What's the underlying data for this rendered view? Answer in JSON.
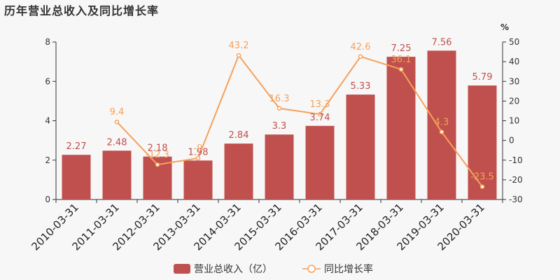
{
  "title": "历年营业总收入及同比增长率",
  "colors": {
    "bar": "#c0504d",
    "line": "#f5a15b",
    "axis": "#333333"
  },
  "chart_data": {
    "type": "bar",
    "categories": [
      "2010-03-31",
      "2011-03-31",
      "2012-03-31",
      "2013-03-31",
      "2014-03-31",
      "2015-03-31",
      "2016-03-31",
      "2017-03-31",
      "2018-03-31",
      "2019-03-31",
      "2020-03-31"
    ],
    "series": [
      {
        "name": "营业总收入（亿）",
        "type": "bar",
        "axis": "left",
        "values": [
          2.27,
          2.48,
          2.18,
          1.98,
          2.84,
          3.3,
          3.74,
          5.33,
          7.25,
          7.56,
          5.79
        ],
        "labels": [
          "2.27",
          "2.48",
          "2.18",
          "1.98",
          "2.84",
          "3.3",
          "3.74",
          "5.33",
          "7.25",
          "7.56",
          "5.79"
        ]
      },
      {
        "name": "同比增长率",
        "type": "line",
        "axis": "right",
        "values": [
          null,
          9.4,
          -12.3,
          -9,
          43.2,
          16.3,
          13.3,
          42.6,
          36.1,
          4.3,
          -23.5
        ],
        "labels": [
          null,
          "9.4",
          "-12.3",
          "-9",
          "43.2",
          "16.3",
          "13.3",
          "42.6",
          "36.1",
          "4.3",
          "-23.5"
        ]
      }
    ],
    "y_left": {
      "min": 0,
      "max": 8,
      "ticks": [
        0,
        2,
        4,
        6,
        8
      ],
      "tick_labels": [
        "0",
        "2",
        "4",
        "6",
        "8"
      ]
    },
    "y_right": {
      "min": -30,
      "max": 50,
      "ticks": [
        -30,
        -20,
        -10,
        0,
        10,
        20,
        30,
        40,
        50
      ],
      "tick_labels": [
        "-30",
        "-20",
        "-10",
        "0",
        "10",
        "20",
        "30",
        "40",
        "50"
      ],
      "unit": "%"
    },
    "grid": false,
    "legend_position": "bottom"
  }
}
